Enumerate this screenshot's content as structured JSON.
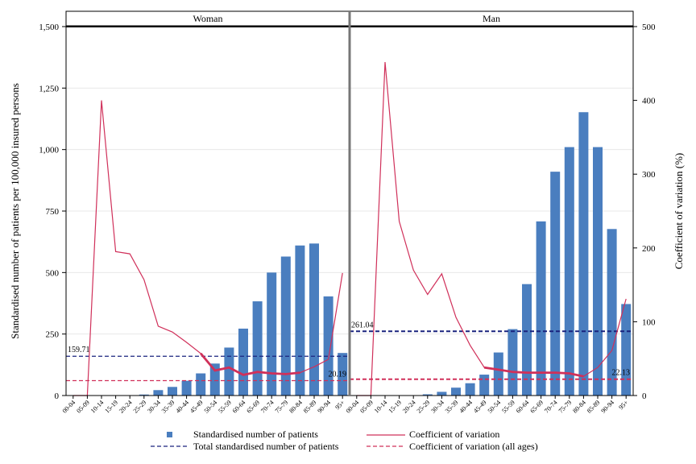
{
  "chart_data": {
    "type": "bar",
    "categories": [
      "00-04",
      "05-09",
      "10-14",
      "15-19",
      "20-24",
      "25-29",
      "30-34",
      "35-39",
      "40-44",
      "45-49",
      "50-54",
      "55-59",
      "60-64",
      "65-69",
      "70-74",
      "75-79",
      "80-84",
      "85-89",
      "90-94",
      "95+"
    ],
    "ylabel_left": "Standardised number of patients per 100,000 insured persons",
    "ylabel_right": "Coefficient of variation (%)",
    "ylim_left": [
      0,
      1500
    ],
    "ylim_right": [
      0,
      500
    ],
    "yticks_left": [
      0,
      250,
      500,
      750,
      1000,
      1250,
      1500
    ],
    "yticks_left_labels": [
      "0",
      "250",
      "500",
      "750",
      "1,000",
      "1,250",
      "1,500"
    ],
    "yticks_right": [
      0,
      100,
      200,
      300,
      400,
      500
    ],
    "yticks_right_labels": [
      "0",
      "100",
      "200",
      "300",
      "400",
      "500"
    ],
    "bar_color": "#4a7ebf",
    "cv_color": "#d0305a",
    "total_color": "#1a237e",
    "panels": [
      {
        "title": "Woman",
        "bars": [
          0,
          0,
          0,
          0,
          0,
          4,
          22,
          35,
          60,
          90,
          130,
          195,
          272,
          383,
          500,
          565,
          610,
          618,
          403,
          173
        ],
        "cv": [
          0,
          0,
          400,
          195,
          192,
          157,
          94,
          86,
          72,
          57,
          34,
          38,
          28,
          32,
          30,
          29,
          31,
          39,
          49,
          166
        ],
        "total_value": 159.71,
        "total_label": "159.71",
        "cv_all": 20.19,
        "cv_all_label": "20.19"
      },
      {
        "title": "Man",
        "bars": [
          0,
          0,
          0,
          0,
          0,
          5,
          15,
          32,
          50,
          85,
          175,
          270,
          453,
          708,
          910,
          1010,
          1152,
          1010,
          677,
          372
        ],
        "cv": [
          0,
          0,
          452,
          236,
          170,
          137,
          165,
          106,
          68,
          38,
          35,
          32,
          31,
          31,
          31,
          30,
          26,
          38,
          61,
          131
        ],
        "total_value": 261.04,
        "total_label": "261.04",
        "cv_all": 22.13,
        "cv_all_label": "22.13"
      }
    ],
    "legend": {
      "bars": "Standardised number of patients",
      "cv": "Coefficient of variation",
      "total": "Total standardised number of patients",
      "cv_all": "Coefficient of variation (all ages)"
    }
  }
}
